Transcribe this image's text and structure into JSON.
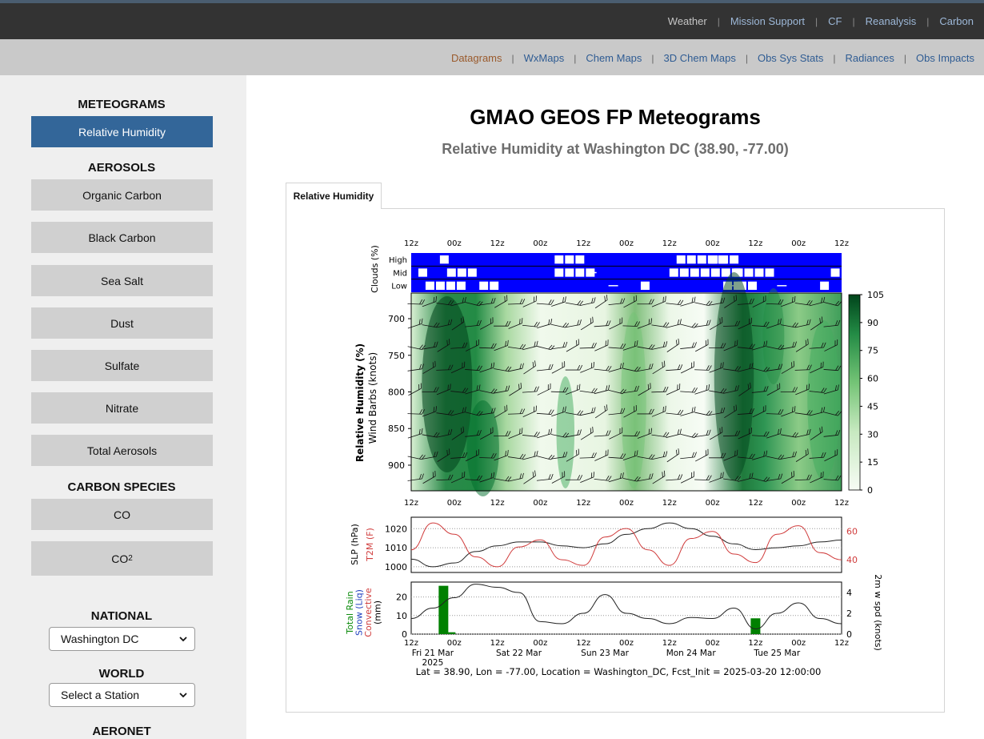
{
  "topnav": {
    "items": [
      "Weather",
      "Mission Support",
      "CF",
      "Reanalysis",
      "Carbon"
    ]
  },
  "subnav": {
    "items": [
      "Datagrams",
      "WxMaps",
      "Chem Maps",
      "3D Chem Maps",
      "Obs Sys Stats",
      "Radiances",
      "Obs Impacts"
    ],
    "active": "Datagrams"
  },
  "sidebar": {
    "meteograms_heading": "METEOGRAMS",
    "relative_humidity": "Relative Humidity",
    "aerosols_heading": "AEROSOLS",
    "aerosols": [
      "Organic Carbon",
      "Black Carbon",
      "Sea Salt",
      "Dust",
      "Sulfate",
      "Nitrate",
      "Total Aerosols"
    ],
    "carbon_heading": "CARBON SPECIES",
    "co_label": "CO",
    "co2_base": "CO",
    "co2_sub": "2",
    "national_heading": "NATIONAL",
    "national_value": "Washington DC",
    "world_heading": "WORLD",
    "world_value": "Select a Station",
    "aeronet_heading": "AERONET"
  },
  "main": {
    "title": "GMAO GEOS FP Meteograms",
    "subtitle": "Relative Humidity at Washington DC (38.90, -77.00)",
    "tab": "Relative Humidity"
  },
  "figure": {
    "time_ticks": [
      "12z",
      "00z",
      "12z",
      "00z",
      "12z",
      "00z",
      "12z",
      "00z",
      "12z",
      "00z",
      "12z"
    ],
    "day_labels": [
      "Fri 21 Mar",
      "Sat 22 Mar",
      "Sun 23 Mar",
      "Mon 24 Mar",
      "Tue 25 Mar"
    ],
    "year_label": "2025",
    "footer": "Lat = 38.90, Lon = -77.00, Location = Washington_DC, Fcst_Init = 2025-03-20 12:00:00",
    "colors": {
      "cloud_blue": "#0000ff",
      "rh_dark": "#00441b",
      "rh_light": "#f7fcf5",
      "t2m_red": "#d03c3c",
      "rain_green": "#008000",
      "snow_blue": "#1f3fbf"
    }
  },
  "chart_data": [
    {
      "type": "bar",
      "title": "",
      "ylabel": "Clouds (%)",
      "categories": [
        "High",
        "Mid",
        "Low"
      ]
    },
    {
      "type": "heatmap",
      "ylabel": "Relative Humidity (%)",
      "ylabel2": "Wind Barbs (knots)",
      "y_ticks": [
        700,
        750,
        800,
        850,
        900
      ],
      "ylim": [
        935,
        665
      ],
      "colorbar_ticks": [
        0,
        15,
        30,
        45,
        60,
        75,
        90,
        105
      ],
      "colorbar_range": [
        0,
        105
      ]
    },
    {
      "type": "line",
      "series": [
        {
          "name": "SLP (hPa)",
          "axis": "left",
          "ylim": [
            997,
            1026
          ],
          "x": [
            0,
            6,
            12,
            18,
            24,
            30,
            36,
            42,
            48,
            54,
            60,
            66,
            72,
            78,
            84,
            90,
            96,
            102,
            108,
            114,
            120
          ],
          "values": [
            1004,
            1000,
            1002,
            1008,
            1011,
            1013,
            1013,
            1011,
            1010,
            1012,
            1017,
            1020,
            1023,
            1020,
            1016,
            1012,
            1009,
            1010,
            1011,
            1013,
            1014
          ]
        },
        {
          "name": "T2M (F)",
          "axis": "right",
          "ylim": [
            31,
            70
          ],
          "x": [
            0,
            6,
            12,
            18,
            24,
            30,
            36,
            42,
            48,
            54,
            60,
            66,
            72,
            78,
            84,
            90,
            96,
            102,
            108,
            114,
            120
          ],
          "values": [
            47,
            66,
            58,
            42,
            35,
            49,
            54,
            40,
            36,
            56,
            62,
            47,
            36,
            55,
            60,
            44,
            38,
            58,
            64,
            45,
            40
          ]
        }
      ],
      "left_ticks": [
        1000,
        1010,
        1020
      ],
      "right_ticks": [
        40,
        60
      ]
    },
    {
      "type": "bar",
      "ylabel_lines": [
        "Total Rain",
        "Snow (Liq)",
        "Convective",
        "(mm)"
      ],
      "ylabel_right": "2m w spd (knots)",
      "left_ticks": [
        0,
        10,
        20
      ],
      "right_ticks": [
        0,
        2,
        4
      ],
      "rain_bars": [
        {
          "x": 9,
          "value": 26
        },
        {
          "x": 11,
          "value": 1
        },
        {
          "x": 96,
          "value": 8.5
        }
      ],
      "wind_speed": {
        "x": [
          0,
          6,
          12,
          18,
          24,
          30,
          36,
          42,
          48,
          54,
          60,
          66,
          72,
          78,
          84,
          90,
          96,
          102,
          108,
          114,
          120
        ],
        "values": [
          1.5,
          2.5,
          3.5,
          4.8,
          4.5,
          4.0,
          1.2,
          1.0,
          2.0,
          3.8,
          2.0,
          1.5,
          1.0,
          1.6,
          1.5,
          2.5,
          0.5,
          2.0,
          3.0,
          1.5,
          1.0
        ]
      }
    }
  ]
}
